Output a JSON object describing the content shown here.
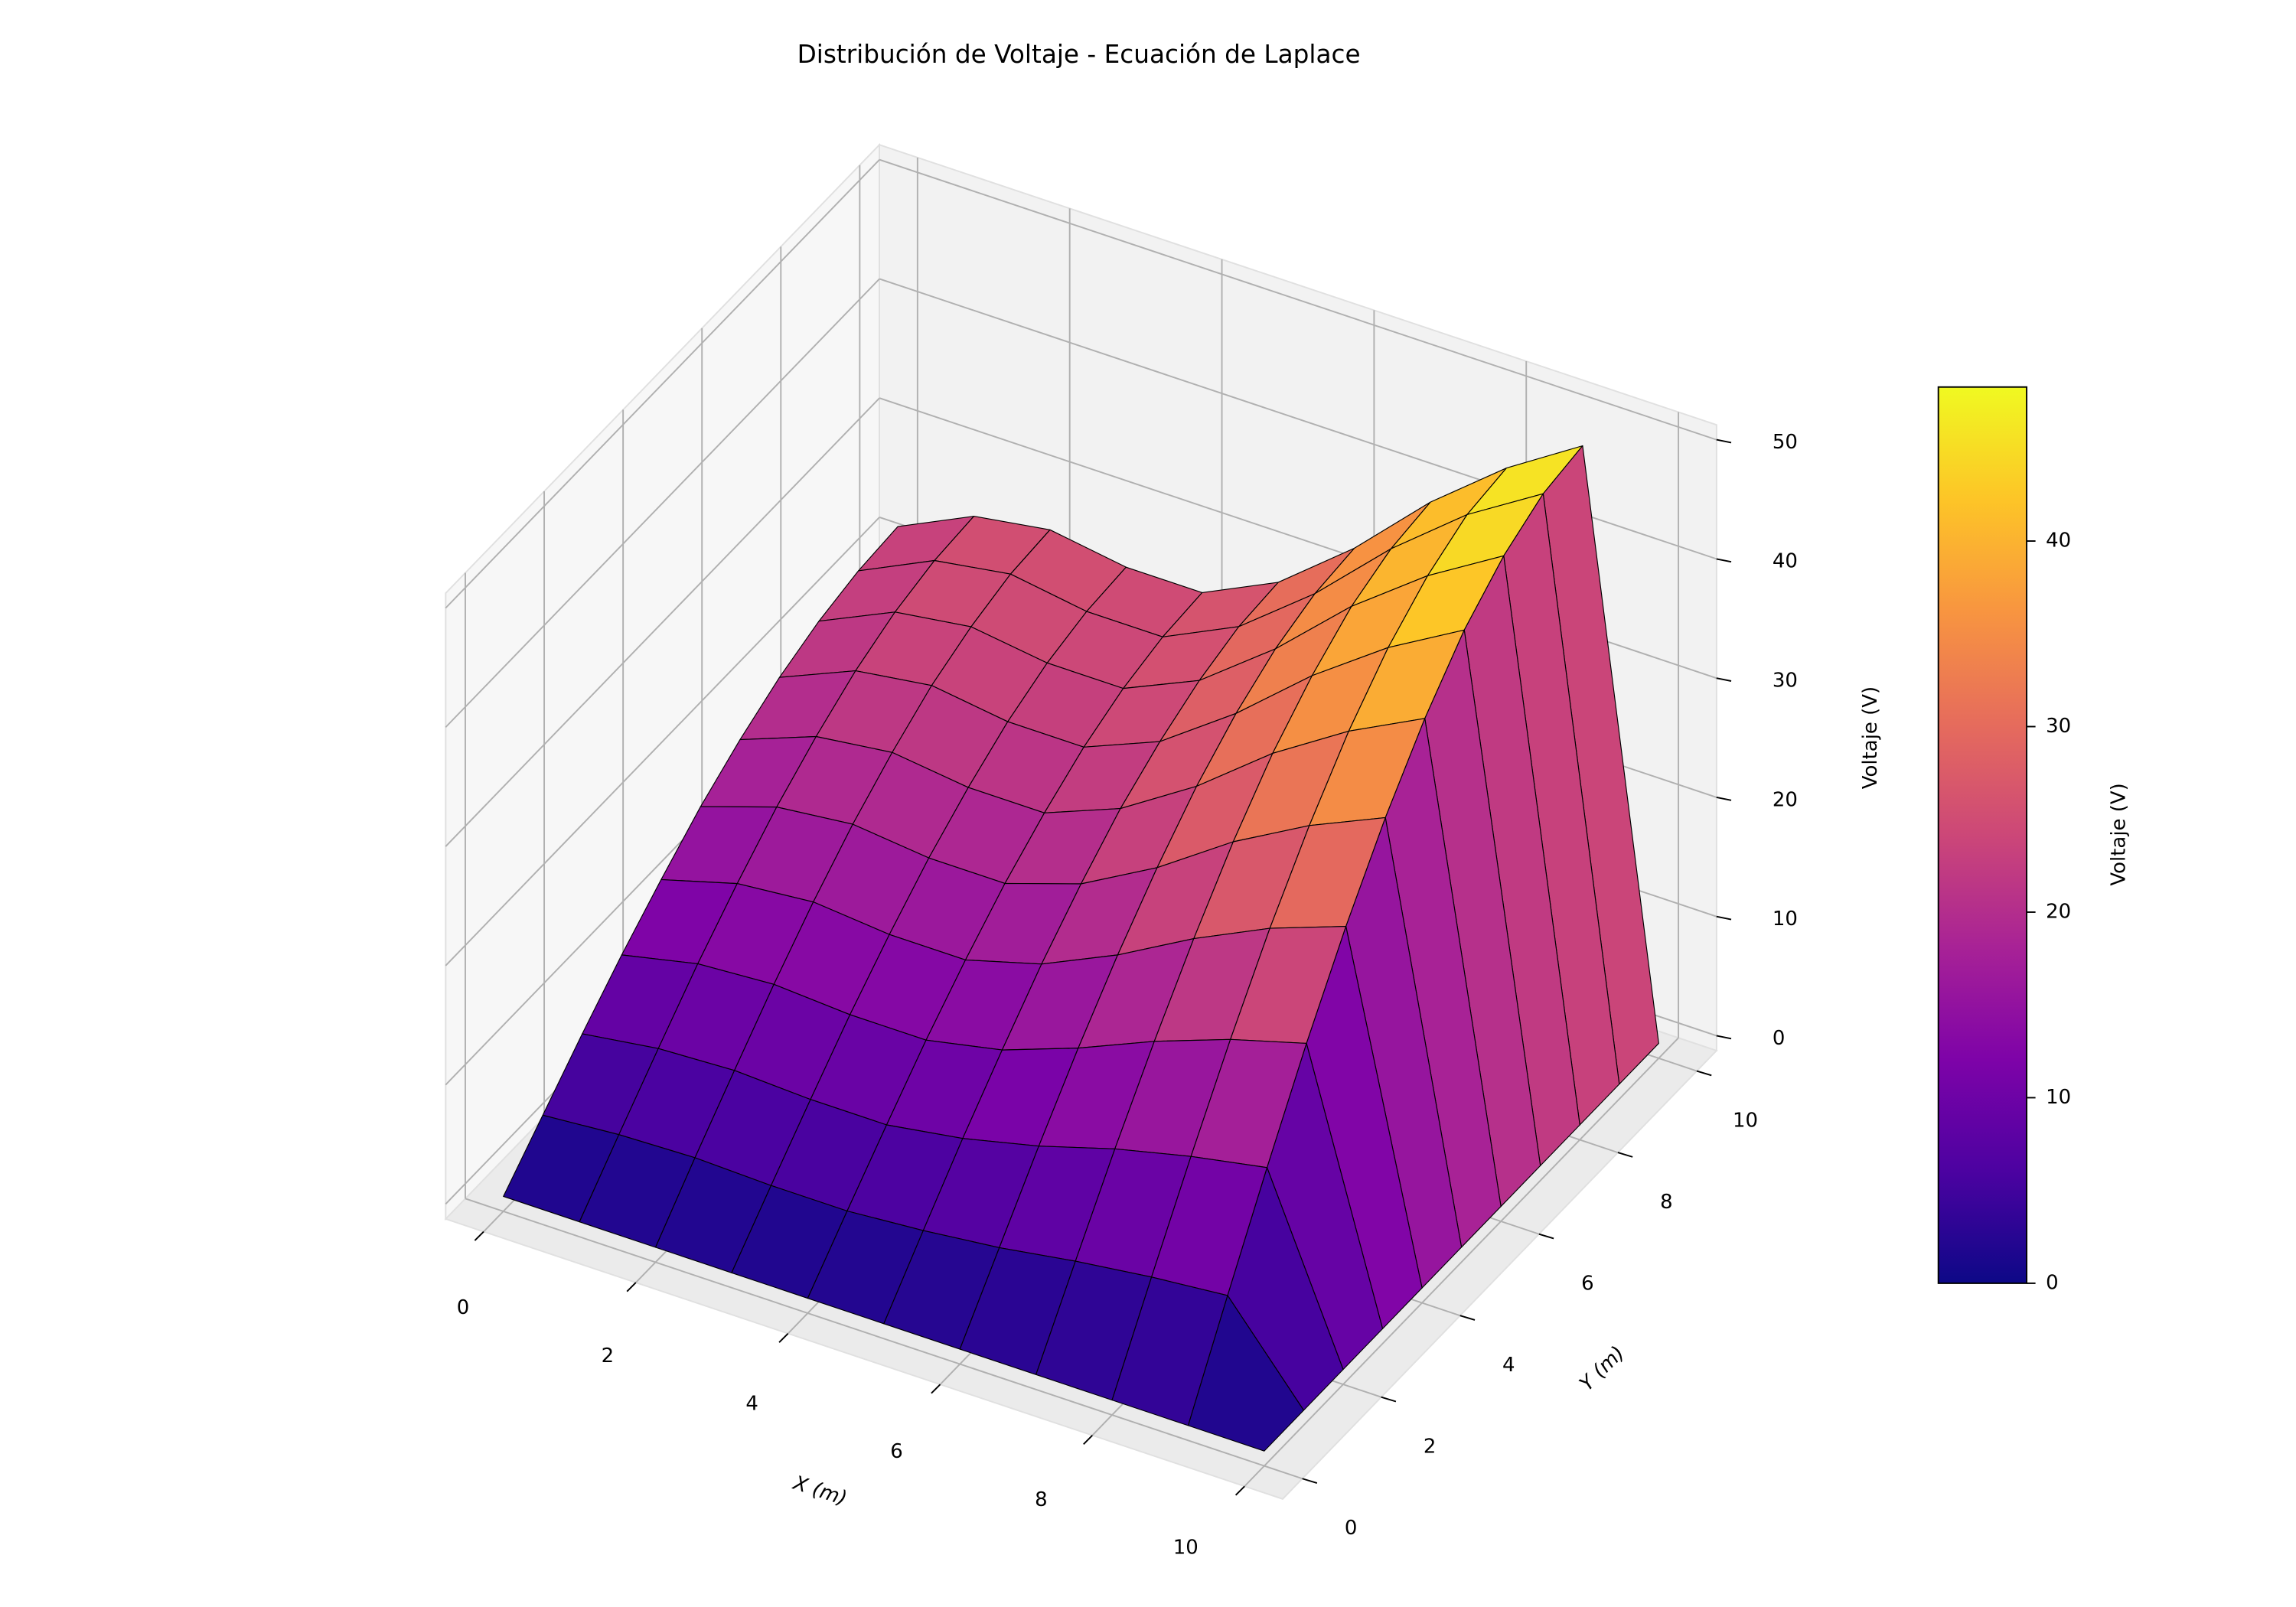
{
  "chart_data": {
    "type": "surface",
    "title": "Distribución de Voltaje - Ecuación de Laplace",
    "xlabel": "X (m)",
    "ylabel": "Y (m)",
    "zlabel": "Voltaje (V)",
    "x": [
      0,
      1,
      2,
      3,
      4,
      5,
      6,
      7,
      8,
      9,
      10
    ],
    "y": [
      0,
      1,
      2,
      3,
      4,
      5,
      6,
      7,
      8,
      9,
      10
    ],
    "z": [
      [
        0,
        0,
        0,
        0,
        0,
        0,
        0,
        0,
        0,
        0,
        0
      ],
      [
        3.4,
        3.9,
        4.1,
        3.9,
        3.9,
        4.4,
        5.1,
        6.1,
        6.9,
        7.5,
        0
      ],
      [
        6.8,
        7.7,
        8.0,
        7.7,
        7.7,
        8.7,
        10.2,
        12.1,
        13.6,
        14.8,
        0
      ],
      [
        10.0,
        11.4,
        11.8,
        11.4,
        11.4,
        12.7,
        15.0,
        17.7,
        20.0,
        21.8,
        0
      ],
      [
        12.9,
        14.7,
        15.3,
        14.7,
        14.7,
        16.5,
        19.4,
        22.9,
        25.9,
        28.2,
        0
      ],
      [
        15.6,
        17.7,
        18.4,
        17.7,
        17.7,
        19.8,
        23.3,
        27.6,
        31.1,
        33.9,
        0
      ],
      [
        17.8,
        20.2,
        21.0,
        20.2,
        20.2,
        22.7,
        26.7,
        31.6,
        35.6,
        38.8,
        0
      ],
      [
        19.6,
        22.3,
        23.2,
        22.3,
        22.3,
        24.9,
        29.4,
        34.7,
        39.2,
        42.8,
        0
      ],
      [
        20.9,
        23.8,
        24.7,
        23.8,
        23.8,
        26.6,
        31.4,
        37.1,
        41.8,
        45.6,
        0
      ],
      [
        21.7,
        24.7,
        25.7,
        24.7,
        24.7,
        27.7,
        32.6,
        38.5,
        43.5,
        47.4,
        0
      ],
      [
        22,
        25,
        26,
        25,
        25,
        28,
        33,
        39,
        44,
        48,
        0
      ]
    ],
    "xlim": [
      0,
      10
    ],
    "ylim": [
      0,
      10
    ],
    "zlim": [
      0,
      50
    ],
    "xticks": [
      0,
      2,
      4,
      6,
      8,
      10
    ],
    "yticks": [
      0,
      2,
      4,
      6,
      8,
      10
    ],
    "zticks": [
      0,
      10,
      20,
      30,
      40,
      50
    ],
    "grid": true,
    "colormap": "plasma",
    "colorbar": {
      "label": "Voltaje (V)",
      "clim": [
        0,
        48.3
      ],
      "ticks": [
        0,
        10,
        20,
        30,
        40
      ]
    }
  }
}
